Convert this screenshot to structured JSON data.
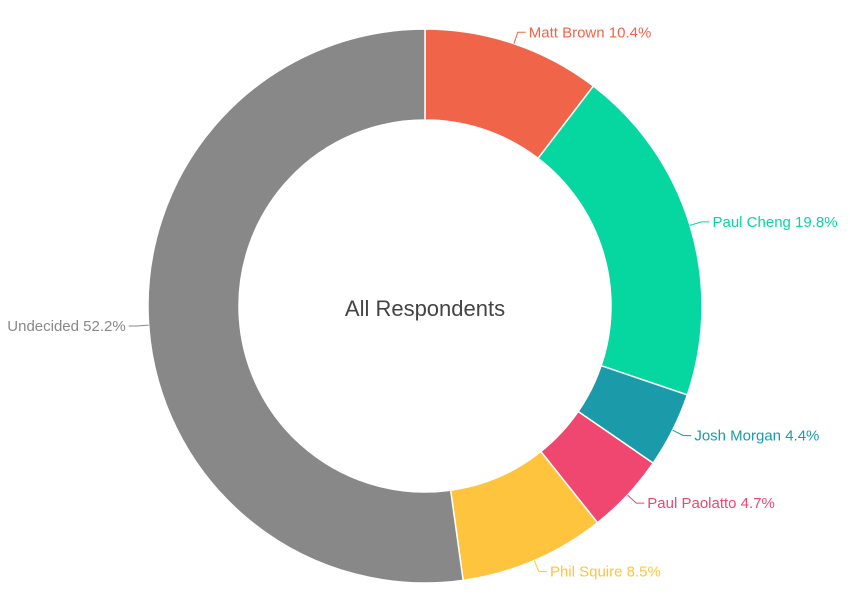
{
  "chart_data": {
    "type": "pie",
    "variant": "donut",
    "center_label": "All Respondents",
    "slices": [
      {
        "name": "Matt Brown",
        "value": 10.4,
        "label": "Matt Brown 10.4%",
        "color": "#F0654A"
      },
      {
        "name": "Paul Cheng",
        "value": 19.8,
        "label": "Paul Cheng 19.8%",
        "color": "#06D6A0"
      },
      {
        "name": "Josh Morgan",
        "value": 4.4,
        "label": "Josh Morgan 4.4%",
        "color": "#1B9AAA"
      },
      {
        "name": "Paul Paolatto",
        "value": 4.7,
        "label": "Paul Paolatto 4.7%",
        "color": "#EF476F"
      },
      {
        "name": "Phil Squire",
        "value": 8.5,
        "label": "Phil Squire 8.5%",
        "color": "#FFC43D"
      },
      {
        "name": "Undecided",
        "value": 52.2,
        "label": "Undecided 52.2%",
        "color": "#888888"
      }
    ]
  }
}
